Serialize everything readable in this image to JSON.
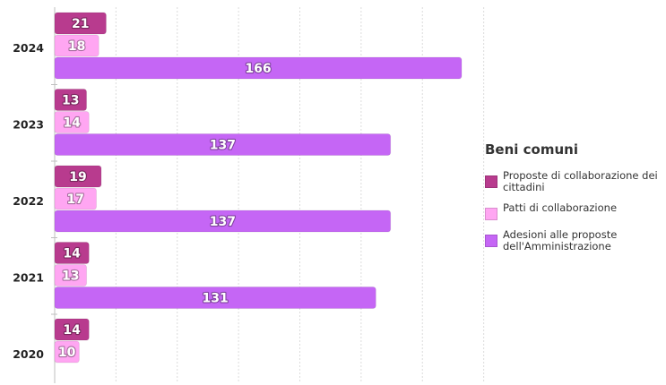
{
  "chart_data": {
    "type": "bar",
    "orientation": "horizontal",
    "categories": [
      "2024",
      "2023",
      "2022",
      "2021",
      "2020"
    ],
    "series": [
      {
        "name": "Proposte di collaborazione dei cittadini",
        "color": "#b83b8e",
        "values": [
          21,
          13,
          19,
          14,
          14
        ]
      },
      {
        "name": "Patti di collaborazione",
        "color": "#ffa6f2",
        "values": [
          18,
          14,
          17,
          13,
          10
        ]
      },
      {
        "name": "Adesioni alle proposte dell'Amministrazione",
        "color": "#c566f5",
        "values": [
          166,
          137,
          137,
          131,
          null
        ]
      }
    ],
    "xlim": [
      0,
      170
    ],
    "x_gridlines": [
      0,
      25,
      50,
      75,
      100,
      125,
      150,
      175
    ],
    "grid": true,
    "data_labels": true,
    "legend": {
      "title": "Beni comuni",
      "placement": "right"
    }
  }
}
